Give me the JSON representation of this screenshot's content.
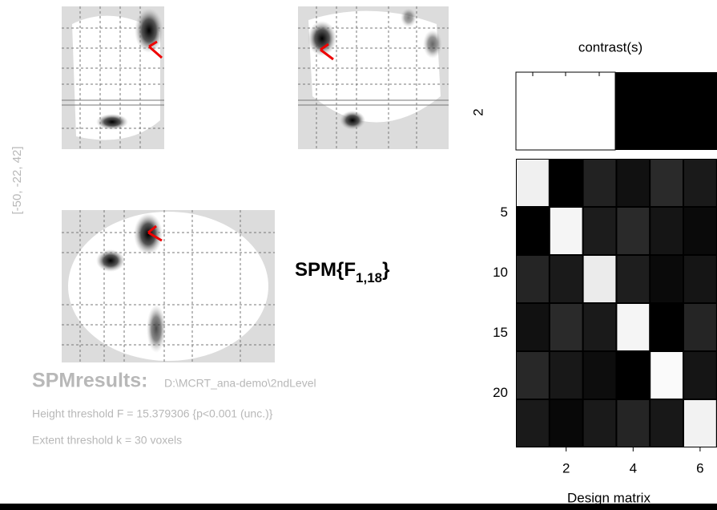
{
  "coordinates": "[-50, -22, 42]",
  "spm_label": {
    "main": "SPM{F",
    "subscript": "1,18",
    "close": "}"
  },
  "results": {
    "title": "SPMresults:",
    "path": "D:\\MCRT_ana-demo\\2ndLevel",
    "height_threshold": "Height threshold F = 15.379306  {p<0.001 (unc.)}",
    "extent_threshold": "Extent threshold k = 30 voxels"
  },
  "contrast": {
    "title": "contrast(s)",
    "label": "2"
  },
  "design_matrix": {
    "xlabel": "Design matrix",
    "yticks": [
      "5",
      "10",
      "15",
      "20"
    ],
    "xticks": [
      "2",
      "4",
      "6"
    ]
  }
}
